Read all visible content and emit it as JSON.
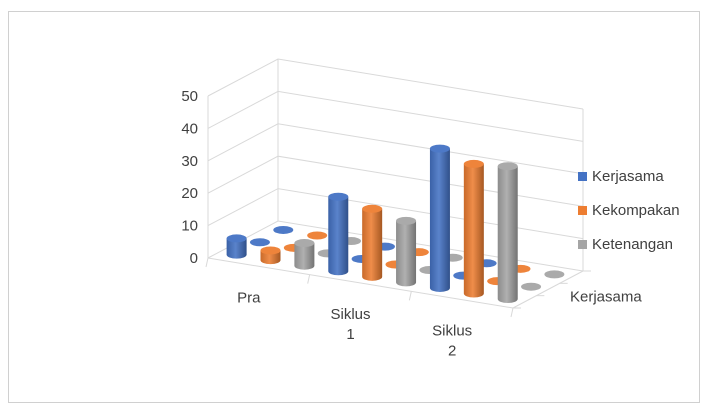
{
  "chart_data": {
    "type": "bar",
    "variant": "3d-cylinder",
    "title": "",
    "categories": [
      "Pra",
      "Siklus 1",
      "Siklus 2"
    ],
    "depth_axis_label": "Kerjasama",
    "subgroups": [
      "Kerjasama",
      "Kekompakan",
      "Ketenangan"
    ],
    "series": [
      {
        "name": "Kerjasama",
        "color": "#4472c4",
        "values": [
          [
            5,
            0,
            0
          ],
          [
            23,
            0,
            0
          ],
          [
            43,
            0,
            0
          ]
        ]
      },
      {
        "name": "Kekompakan",
        "color": "#ed7d31",
        "values": [
          [
            3,
            0,
            0
          ],
          [
            21,
            0,
            0
          ],
          [
            40,
            0,
            0
          ]
        ]
      },
      {
        "name": "Ketenangan",
        "color": "#a5a5a5",
        "values": [
          [
            7,
            0,
            0
          ],
          [
            19,
            0,
            0
          ],
          [
            41,
            0,
            0
          ]
        ]
      }
    ],
    "ylim": [
      0,
      50
    ],
    "yticks": [
      0,
      10,
      20,
      30,
      40,
      50
    ],
    "grid": true,
    "legend_position": "right"
  }
}
